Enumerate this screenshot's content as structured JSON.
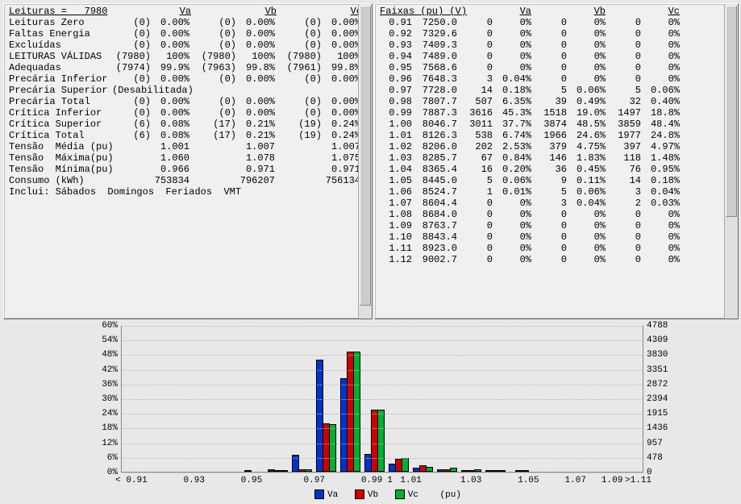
{
  "left": {
    "header": {
      "leituras_label": "Leituras =   7980",
      "va": "Va",
      "vb": "Vb",
      "vc": "Vc"
    },
    "rows": [
      {
        "label": "Leituras Zero",
        "va_c": "(0)",
        "va_p": "0.00%",
        "vb_c": "(0)",
        "vb_p": "0.00%",
        "vc_c": "(0)",
        "vc_p": "0.00%"
      },
      {
        "label": "Faltas Energia",
        "va_c": "(0)",
        "va_p": "0.00%",
        "vb_c": "(0)",
        "vb_p": "0.00%",
        "vc_c": "(0)",
        "vc_p": "0.00%"
      },
      {
        "label": "Excluídas",
        "va_c": "(0)",
        "va_p": "0.00%",
        "vb_c": "(0)",
        "vb_p": "0.00%",
        "vc_c": "(0)",
        "vc_p": "0.00%"
      },
      {
        "label": "LEITURAS VÁLIDAS",
        "va_c": "(7980)",
        "va_p": "100%",
        "vb_c": "(7980)",
        "vb_p": "100%",
        "vc_c": "(7980)",
        "vc_p": "100%"
      },
      {
        "label": "Adequadas",
        "va_c": "(7974)",
        "va_p": "99.9%",
        "vb_c": "(7963)",
        "vb_p": "99.8%",
        "vc_c": "(7961)",
        "vc_p": "99.8%"
      },
      {
        "label": "Precária Inferior",
        "va_c": "(0)",
        "va_p": "0.00%",
        "vb_c": "(0)",
        "vb_p": "0.00%",
        "vc_c": "(0)",
        "vc_p": "0.00%"
      },
      {
        "label": "Precária Superior",
        "va_c": "(Desabilitada)",
        "va_p": "",
        "vb_c": "",
        "vb_p": "",
        "vc_c": "",
        "vc_p": ""
      },
      {
        "label": "Precária Total",
        "va_c": "(0)",
        "va_p": "0.00%",
        "vb_c": "(0)",
        "vb_p": "0.00%",
        "vc_c": "(0)",
        "vc_p": "0.00%"
      },
      {
        "label": "Crítica Inferior",
        "va_c": "(0)",
        "va_p": "0.00%",
        "vb_c": "(0)",
        "vb_p": "0.00%",
        "vc_c": "(0)",
        "vc_p": "0.00%"
      },
      {
        "label": "Crítica Superior",
        "va_c": "(6)",
        "va_p": "0.08%",
        "vb_c": "(17)",
        "vb_p": "0.21%",
        "vc_c": "(19)",
        "vc_p": "0.24%"
      },
      {
        "label": "Crítica Total",
        "va_c": "(6)",
        "va_p": "0.08%",
        "vb_c": "(17)",
        "vb_p": "0.21%",
        "vc_c": "(19)",
        "vc_p": "0.24%"
      },
      {
        "label": "Tensão  Média (pu)",
        "va_c": "",
        "va_p": "1.001",
        "vb_c": "",
        "vb_p": "1.007",
        "vc_c": "",
        "vc_p": "1.007"
      },
      {
        "label": "Tensão  Máxima(pu)",
        "va_c": "",
        "va_p": "1.060",
        "vb_c": "",
        "vb_p": "1.078",
        "vc_c": "",
        "vc_p": "1.075"
      },
      {
        "label": "Tensão  Mínima(pu)",
        "va_c": "",
        "va_p": "0.966",
        "vb_c": "",
        "vb_p": "0.971",
        "vc_c": "",
        "vc_p": "0.971"
      },
      {
        "label": "Consumo (kWh)",
        "va_c": "",
        "va_p": "753834",
        "vb_c": "",
        "vb_p": "796207",
        "vc_c": "",
        "vc_p": "756134"
      }
    ],
    "footer": "Inclui: Sábados  Domingos  Feriados  VMT"
  },
  "right": {
    "header": {
      "title": "Faixas (pu) (V)",
      "va": "Va",
      "vb": "Vb",
      "vc": "Vc"
    },
    "cols": [
      "pu",
      "v",
      "va_c",
      "va_p",
      "vb_c",
      "vb_p",
      "vc_c",
      "vc_p"
    ],
    "rows": [
      [
        "0.91",
        "7250.0",
        "0",
        "0%",
        "0",
        "0%",
        "0",
        "0%"
      ],
      [
        "0.92",
        "7329.6",
        "0",
        "0%",
        "0",
        "0%",
        "0",
        "0%"
      ],
      [
        "0.93",
        "7409.3",
        "0",
        "0%",
        "0",
        "0%",
        "0",
        "0%"
      ],
      [
        "0.94",
        "7489.0",
        "0",
        "0%",
        "0",
        "0%",
        "0",
        "0%"
      ],
      [
        "0.95",
        "7568.6",
        "0",
        "0%",
        "0",
        "0%",
        "0",
        "0%"
      ],
      [
        "0.96",
        "7648.3",
        "3",
        "0.04%",
        "0",
        "0%",
        "0",
        "0%"
      ],
      [
        "0.97",
        "7728.0",
        "14",
        "0.18%",
        "5",
        "0.06%",
        "5",
        "0.06%"
      ],
      [
        "0.98",
        "7807.7",
        "507",
        "6.35%",
        "39",
        "0.49%",
        "32",
        "0.40%"
      ],
      [
        "0.99",
        "7887.3",
        "3616",
        "45.3%",
        "1518",
        "19.0%",
        "1497",
        "18.8%"
      ],
      [
        "1.00",
        "8046.7",
        "3011",
        "37.7%",
        "3874",
        "48.5%",
        "3859",
        "48.4%"
      ],
      [
        "1.01",
        "8126.3",
        "538",
        "6.74%",
        "1966",
        "24.6%",
        "1977",
        "24.8%"
      ],
      [
        "1.02",
        "8206.0",
        "202",
        "2.53%",
        "379",
        "4.75%",
        "397",
        "4.97%"
      ],
      [
        "1.03",
        "8285.7",
        "67",
        "0.84%",
        "146",
        "1.83%",
        "118",
        "1.48%"
      ],
      [
        "1.04",
        "8365.4",
        "16",
        "0.20%",
        "36",
        "0.45%",
        "76",
        "0.95%"
      ],
      [
        "1.05",
        "8445.0",
        "5",
        "0.06%",
        "9",
        "0.11%",
        "14",
        "0.18%"
      ],
      [
        "1.06",
        "8524.7",
        "1",
        "0.01%",
        "5",
        "0.06%",
        "3",
        "0.04%"
      ],
      [
        "1.07",
        "8604.4",
        "0",
        "0%",
        "3",
        "0.04%",
        "2",
        "0.03%"
      ],
      [
        "1.08",
        "8684.0",
        "0",
        "0%",
        "0",
        "0%",
        "0",
        "0%"
      ],
      [
        "1.09",
        "8763.7",
        "0",
        "0%",
        "0",
        "0%",
        "0",
        "0%"
      ],
      [
        "1.10",
        "8843.4",
        "0",
        "0%",
        "0",
        "0%",
        "0",
        "0%"
      ],
      [
        "1.11",
        "8923.0",
        "0",
        "0%",
        "0",
        "0%",
        "0",
        "0%"
      ],
      [
        "1.12",
        "9002.7",
        "0",
        "0%",
        "0",
        "0%",
        "0",
        "0%"
      ]
    ]
  },
  "chart": {
    "type": "bar",
    "y_left": {
      "min": 0,
      "max": 60,
      "step": 6,
      "unit": "%",
      "ticks": [
        "0%",
        "6%",
        "12%",
        "18%",
        "24%",
        "30%",
        "36%",
        "42%",
        "48%",
        "54%",
        "60%"
      ]
    },
    "y_right": {
      "ticks": [
        "0",
        "478",
        "957",
        "1436",
        "1915",
        "2394",
        "2872",
        "3351",
        "3830",
        "4309",
        "4788"
      ]
    },
    "x_labels": [
      "< 0.91",
      "0.93",
      "0.95",
      "0.97",
      "0.99",
      "1",
      "1.01",
      "1.03",
      "1.05",
      "1.07",
      "1.09",
      ">1.11"
    ],
    "x_positions": [
      0.02,
      0.14,
      0.25,
      0.37,
      0.48,
      0.515,
      0.555,
      0.67,
      0.78,
      0.87,
      0.94,
      0.99
    ],
    "colors": {
      "va": "#0033cc",
      "vb": "#cc0000",
      "vc": "#00b030",
      "border": "#000000",
      "grid": "#bbbbbb",
      "axis": "#888888",
      "bg": "#e8e8e8"
    },
    "series": {
      "va": [
        0,
        0,
        0,
        0,
        0,
        0.04,
        0.18,
        6.35,
        45.3,
        37.7,
        6.74,
        2.53,
        0.84,
        0.2,
        0.06,
        0.01,
        0,
        0,
        0,
        0,
        0,
        0
      ],
      "vb": [
        0,
        0,
        0,
        0,
        0,
        0,
        0.06,
        0.49,
        19.0,
        48.5,
        24.6,
        4.75,
        1.83,
        0.45,
        0.11,
        0.06,
        0.04,
        0,
        0,
        0,
        0,
        0
      ],
      "vc": [
        0,
        0,
        0,
        0,
        0,
        0,
        0.06,
        0.4,
        18.8,
        48.4,
        24.8,
        4.97,
        1.48,
        0.95,
        0.18,
        0.04,
        0.03,
        0,
        0,
        0,
        0,
        0
      ]
    },
    "legend": {
      "va": "Va",
      "vb": "Vb",
      "vc": "Vc",
      "unit": "(pu)"
    }
  }
}
